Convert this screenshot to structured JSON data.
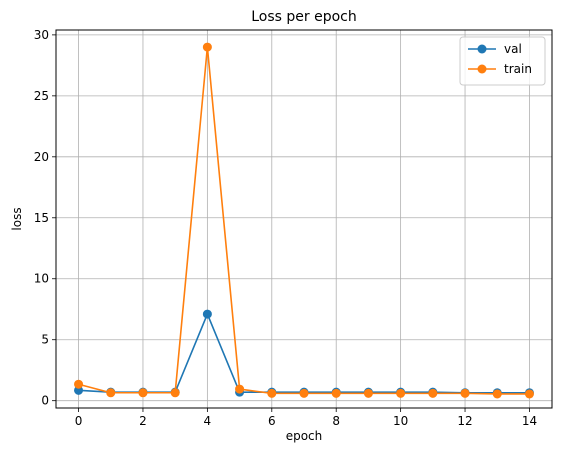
{
  "chart_data": {
    "type": "line",
    "title": "Loss per epoch",
    "xlabel": "epoch",
    "ylabel": "loss",
    "xlim": [
      -0.7,
      14.7
    ],
    "ylim": [
      -0.6,
      30.4
    ],
    "xticks": [
      0,
      2,
      4,
      6,
      8,
      10,
      12,
      14
    ],
    "yticks": [
      0,
      5,
      10,
      15,
      20,
      25,
      30
    ],
    "grid": true,
    "legend_position": "top-right",
    "x": [
      0,
      1,
      2,
      3,
      4,
      5,
      6,
      7,
      8,
      9,
      10,
      11,
      12,
      13,
      14
    ],
    "series": [
      {
        "name": "val",
        "color": "#1f77b4",
        "marker": "circle",
        "values": [
          0.85,
          0.7,
          0.7,
          0.7,
          7.1,
          0.7,
          0.7,
          0.7,
          0.7,
          0.7,
          0.7,
          0.7,
          0.65,
          0.65,
          0.65
        ]
      },
      {
        "name": "train",
        "color": "#ff7f0e",
        "marker": "circle",
        "values": [
          1.35,
          0.65,
          0.65,
          0.65,
          29.0,
          0.95,
          0.6,
          0.6,
          0.6,
          0.6,
          0.6,
          0.6,
          0.6,
          0.55,
          0.55
        ]
      }
    ]
  }
}
